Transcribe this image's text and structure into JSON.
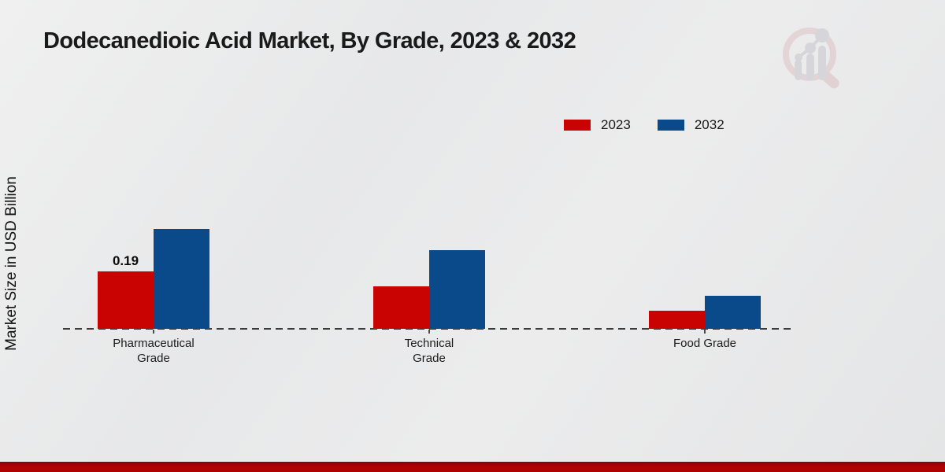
{
  "header": {
    "title": "Dodecanedioic Acid Market, By Grade, 2023 & 2032",
    "logo_name": "market-research-magnifier-logo"
  },
  "chart_data": {
    "type": "bar",
    "title": "Dodecanedioic Acid Market, By Grade, 2023 & 2032",
    "xlabel": "",
    "ylabel": "Market Size in USD Billion",
    "categories": [
      "Pharmaceutical Grade",
      "Technical Grade",
      "Food Grade"
    ],
    "category_lines": [
      [
        "Pharmaceutical",
        "Grade"
      ],
      [
        "Technical",
        "Grade"
      ],
      [
        "Food Grade"
      ]
    ],
    "series": [
      {
        "name": "2023",
        "color": "#c90202",
        "values": [
          0.19,
          0.14,
          0.06
        ],
        "labels": [
          "0.19",
          null,
          null
        ]
      },
      {
        "name": "2032",
        "color": "#0b4a8a",
        "values": [
          0.33,
          0.26,
          0.11
        ],
        "labels": [
          null,
          null,
          null
        ]
      }
    ],
    "legend_position": "top-right",
    "grid": false,
    "baseline_style": "dashed",
    "ylim": [
      0,
      0.4
    ]
  },
  "footer": {
    "accent_color": "#b00202"
  }
}
